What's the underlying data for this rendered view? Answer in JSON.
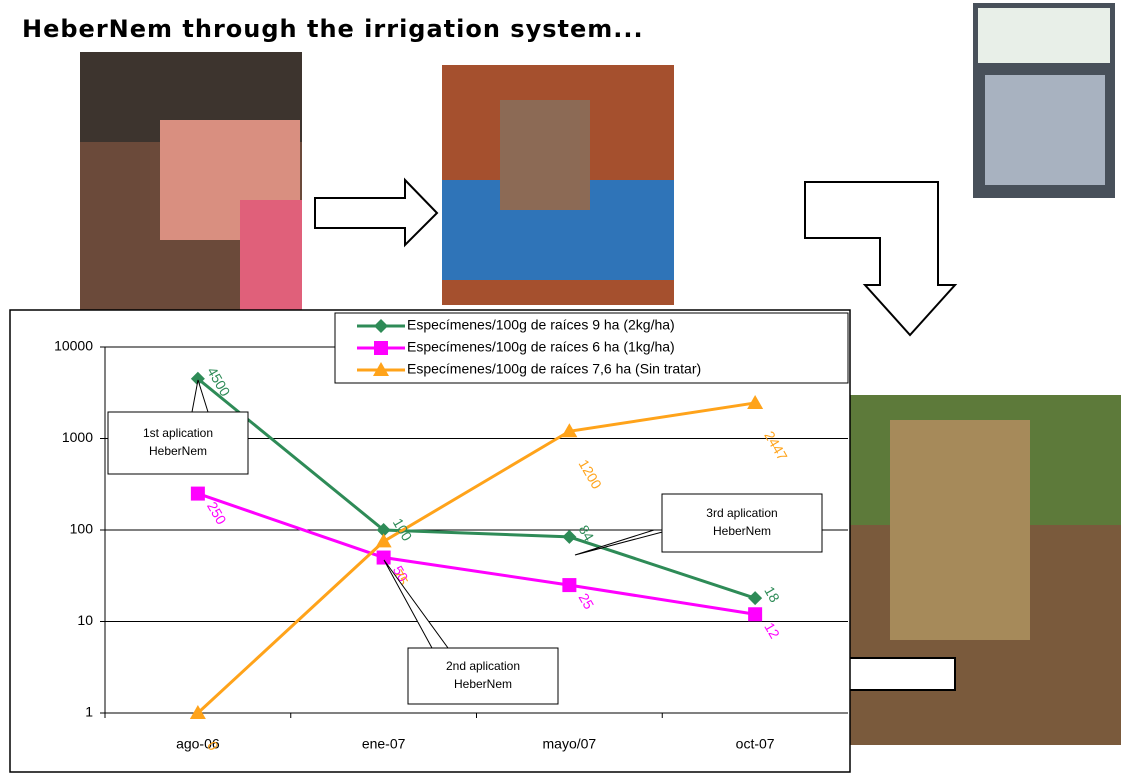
{
  "slide_title": "HeberNem through the irrigation system...",
  "chart_data": {
    "type": "line",
    "categories": [
      "ago-06",
      "ene-07",
      "mayo/07",
      "oct-07"
    ],
    "log_scale": true,
    "ylim": [
      1,
      10000
    ],
    "yticks": [
      1,
      10,
      100,
      1000,
      10000
    ],
    "grid": true,
    "legend": "top-right",
    "series": [
      {
        "name": "Especímenes/100g de raíces 9 ha (2kg/ha)",
        "color": "#2e8b57",
        "marker": "diamond",
        "values": [
          4500,
          100,
          84,
          18
        ]
      },
      {
        "name": "Especímenes/100g de raíces 6 ha (1kg/ha)",
        "color": "#ff00ff",
        "marker": "square",
        "values": [
          250,
          50,
          25,
          12
        ]
      },
      {
        "name": "Especímenes/100g de raíces 7,6 ha (Sin tratar)",
        "color": "#ffa31a",
        "marker": "triangle",
        "values": [
          0,
          75,
          1200,
          2447
        ]
      }
    ],
    "annotations": [
      {
        "lines": [
          "1st aplication",
          "HeberNem"
        ]
      },
      {
        "lines": [
          "2nd aplication",
          "HeberNem"
        ]
      },
      {
        "lines": [
          "3rd aplication",
          "HeberNem"
        ]
      }
    ]
  }
}
